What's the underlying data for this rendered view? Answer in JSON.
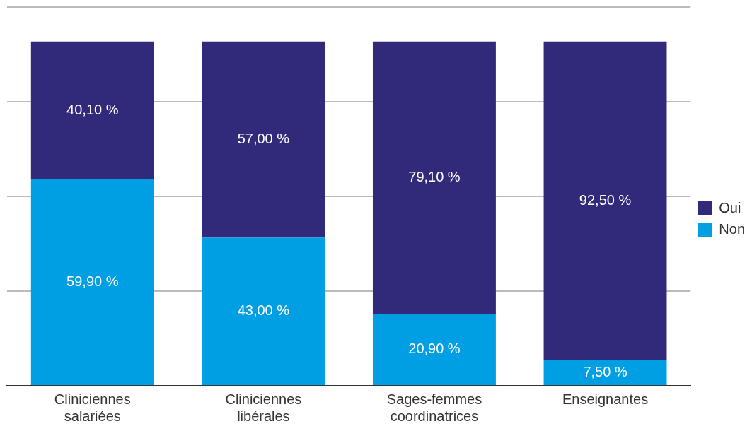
{
  "chart_data": {
    "type": "bar",
    "stacked": true,
    "categories": [
      "Cliniciennes salariées",
      "Cliniciennes libérales",
      "Sages-femmes coordinatrices",
      "Enseignantes"
    ],
    "series": [
      {
        "name": "Non",
        "color": "#009fe3",
        "values": [
          59.9,
          43.0,
          20.9,
          7.5
        ],
        "value_labels": [
          "59,90 %",
          "43,00 %",
          "20,90 %",
          "7,50 %"
        ]
      },
      {
        "name": "Oui",
        "color": "#312a7b",
        "values": [
          40.1,
          57.0,
          79.1,
          92.5
        ],
        "value_labels": [
          "40,10 %",
          "57,00 %",
          "79,10 %",
          "92,50 %"
        ]
      }
    ],
    "ylim": [
      0,
      110
    ],
    "yticks": [
      {
        "value": 0,
        "label": null
      },
      {
        "value": 27.5,
        "label": null
      },
      {
        "value": 55,
        "label": null
      },
      {
        "value": 82.5,
        "label": null
      },
      {
        "value": 110,
        "label": null
      }
    ],
    "grid": "y",
    "legend": "right",
    "tick_labels": "x"
  }
}
